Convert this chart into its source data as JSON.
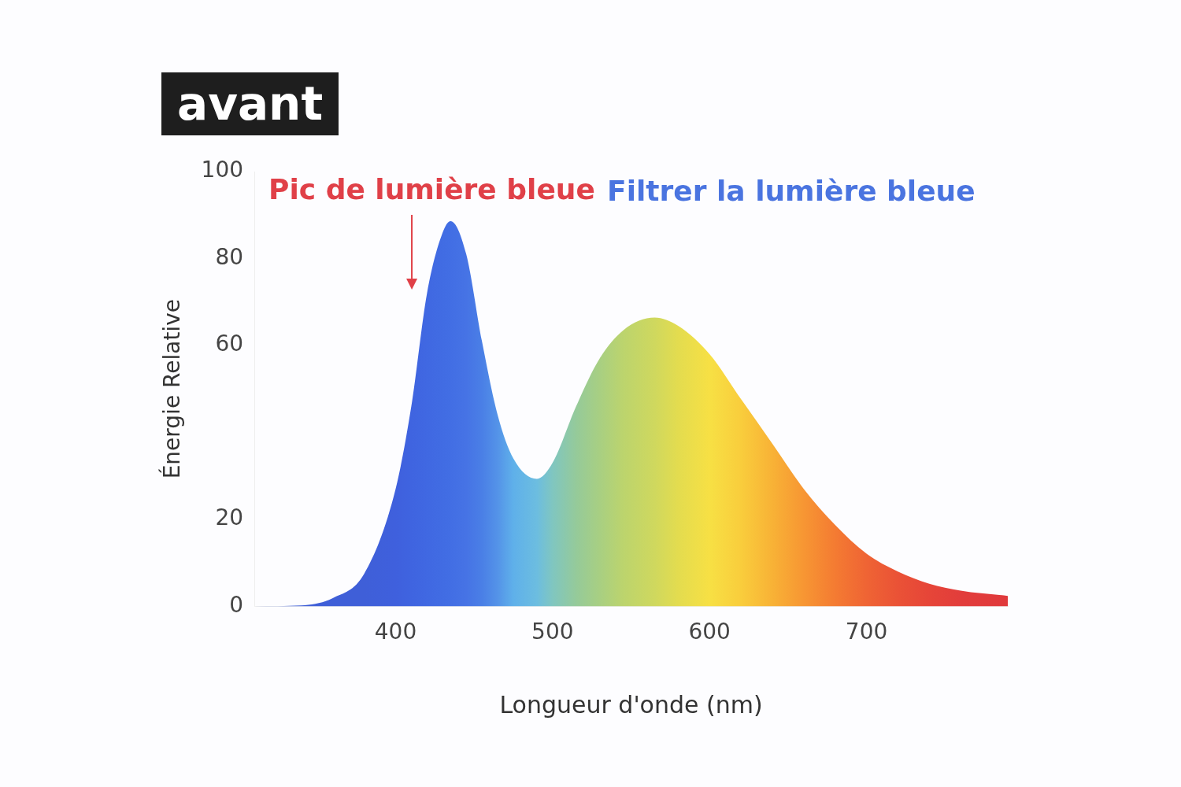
{
  "chart_data": {
    "type": "area",
    "title": "avant",
    "xlabel": "Longueur d'onde (nm)",
    "ylabel": "Énergie Relative",
    "xlim": [
      310,
      790
    ],
    "xticks": [
      400,
      500,
      600,
      700
    ],
    "ylim": [
      0,
      100
    ],
    "yticks": [
      0,
      20,
      60,
      80,
      100
    ],
    "grid": false,
    "legend": false,
    "annotations": [
      "Pic de lumière bleue",
      "Filtrer la lumière bleue"
    ],
    "series": [
      {
        "x": [
          310,
          340,
          360,
          380,
          400,
          410,
          420,
          430,
          435,
          445,
          455,
          465,
          475,
          490,
          500,
          515,
          530,
          545,
          565,
          580,
          600,
          620,
          640,
          660,
          680,
          700,
          720,
          740,
          760,
          790
        ],
        "values": [
          0,
          0.2,
          1.9,
          7.5,
          27,
          46,
          72,
          86,
          88.6,
          81,
          61,
          44,
          34,
          29.3,
          33,
          46,
          57,
          63.5,
          66.4,
          64.5,
          58,
          47.7,
          37.4,
          27,
          18.7,
          12.1,
          8,
          5.2,
          3.6,
          2.4
        ],
        "colors": [
          "#3f5fd8",
          "#3f5fd8",
          "#3f5fd8",
          "#3f5fd8",
          "#3f60dd",
          "#3f64e0",
          "#4068e2",
          "#416ce3",
          "#426ee4",
          "#4673e5",
          "#4a7fe6",
          "#5493e8",
          "#5fb0ea",
          "#6cbde0",
          "#80c6c0",
          "#95ca9a",
          "#a8cf82",
          "#bcd46d",
          "#cfd85e",
          "#e3dc4f",
          "#f7e044",
          "#f9cd3c",
          "#f8b236",
          "#f79633",
          "#f47b32",
          "#ef6434",
          "#ea5236",
          "#e64538",
          "#e23d3b",
          "#e0393c"
        ]
      }
    ]
  }
}
